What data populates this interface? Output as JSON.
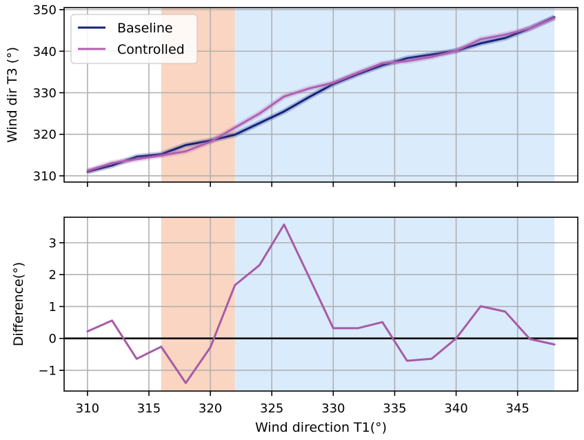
{
  "chart_data": [
    {
      "type": "line",
      "xlabel": "",
      "ylabel": "Wind dir T3 (°)",
      "xlim": [
        308.1,
        349.9
      ],
      "ylim": [
        308.5,
        350.5
      ],
      "xticks": [
        310,
        315,
        320,
        325,
        330,
        335,
        340,
        345
      ],
      "yticks": [
        310,
        320,
        330,
        340,
        350
      ],
      "grid": true,
      "legend": "top-left",
      "shaded_regions": [
        {
          "x0": 316,
          "x1": 322,
          "color": "#f9c9b0"
        },
        {
          "x0": 322,
          "x1": 348,
          "color": "#cfe5fb"
        }
      ],
      "x": [
        310,
        312,
        314,
        316,
        318,
        320,
        322,
        324,
        326,
        328,
        330,
        332,
        334,
        336,
        338,
        340,
        342,
        344,
        346,
        348
      ],
      "series": [
        {
          "name": "Baseline",
          "color": "#13237a",
          "values": [
            311,
            312.5,
            314.6,
            315.2,
            317.4,
            318.5,
            319.9,
            322.7,
            325.5,
            328.9,
            332.1,
            334.5,
            336.6,
            338.3,
            339.2,
            340.1,
            341.9,
            343.2,
            345.5,
            348.2
          ]
        },
        {
          "name": "Controlled",
          "color": "#b060b0",
          "values": [
            311.2,
            313.1,
            314.0,
            314.9,
            315.9,
            318.2,
            321.6,
            325.0,
            329.1,
            331.0,
            332.4,
            334.8,
            337.1,
            337.6,
            338.6,
            340.1,
            342.9,
            344.0,
            345.5,
            348.0
          ]
        }
      ]
    },
    {
      "type": "line",
      "xlabel": "Wind direction T1(°)",
      "ylabel": "Difference(°)",
      "xlim": [
        308.1,
        349.9
      ],
      "ylim": [
        -1.65,
        3.8
      ],
      "xticks": [
        310,
        315,
        320,
        325,
        330,
        335,
        340,
        345
      ],
      "yticks": [
        -1,
        0,
        1,
        2,
        3
      ],
      "ytick_labels": [
        "−1",
        "0",
        "1",
        "2",
        "3"
      ],
      "grid": true,
      "zero_line": true,
      "shaded_regions": [
        {
          "x0": 316,
          "x1": 322,
          "color": "#f9c9b0"
        },
        {
          "x0": 322,
          "x1": 348,
          "color": "#cfe5fb"
        }
      ],
      "x": [
        310,
        312,
        314,
        316,
        318,
        320,
        322,
        324,
        326,
        328,
        330,
        332,
        334,
        336,
        338,
        340,
        342,
        344,
        346,
        348
      ],
      "series": [
        {
          "color": "#a65ba6",
          "values": [
            0.22,
            0.56,
            -0.64,
            -0.26,
            -1.4,
            -0.28,
            1.67,
            2.3,
            3.57,
            1.95,
            0.32,
            0.32,
            0.51,
            -0.7,
            -0.64,
            0.0,
            1.01,
            0.84,
            -0.02,
            -0.19
          ]
        }
      ]
    }
  ]
}
